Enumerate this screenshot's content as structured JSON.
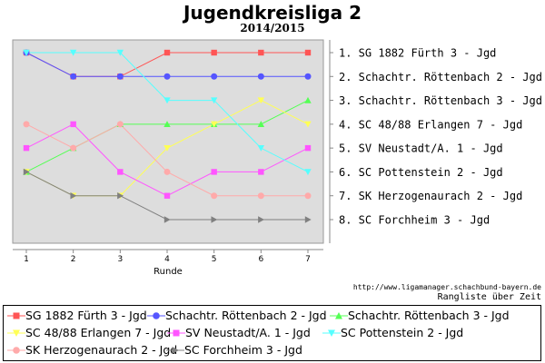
{
  "chart_data": {
    "type": "line",
    "title": "Jugendkreisliga 2",
    "subtitle": "2014/2015",
    "xlabel": "Runde",
    "ylabel": "",
    "x": [
      1,
      2,
      3,
      4,
      5,
      6,
      7
    ],
    "xlim": [
      1,
      7
    ],
    "ylim": [
      1,
      8
    ],
    "y_inverted": true,
    "grid": false,
    "rank_labels": [
      "1. SG 1882 Fürth 3 - Jgd",
      "2. Schachtr. Röttenbach 2 - Jgd",
      "3. Schachtr. Röttenbach 3 - Jgd",
      "4. SC 48/88 Erlangen 7 - Jgd",
      "5. SV Neustadt/A. 1 - Jgd",
      "6. SC Pottenstein 2 - Jgd",
      "7. SK Herzogenaurach 2 - Jgd",
      "8. SC Forchheim 3 - Jgd"
    ],
    "series": [
      {
        "name": "SG 1882 Fürth 3 - Jgd",
        "color": "#ff5555",
        "marker": "square",
        "values": [
          1,
          2,
          2,
          1,
          1,
          1,
          1
        ]
      },
      {
        "name": "Schachtr. Röttenbach 2 - Jgd",
        "color": "#5555ff",
        "marker": "circle",
        "values": [
          1,
          2,
          2,
          2,
          2,
          2,
          2
        ]
      },
      {
        "name": "Schachtr. Röttenbach 3 - Jgd",
        "color": "#55ff55",
        "marker": "triangle-up",
        "values": [
          6,
          5,
          4,
          4,
          4,
          4,
          3
        ]
      },
      {
        "name": "SC 48/88 Erlangen 7 - Jgd",
        "color": "#ffff55",
        "marker": "triangle-down",
        "values": [
          6,
          7,
          7,
          5,
          4,
          3,
          4
        ]
      },
      {
        "name": "SV Neustadt/A. 1 - Jgd",
        "color": "#ff55ff",
        "marker": "square",
        "values": [
          5,
          4,
          6,
          7,
          6,
          6,
          5
        ]
      },
      {
        "name": "SC Pottenstein 2 - Jgd",
        "color": "#55ffff",
        "marker": "triangle-down",
        "values": [
          1,
          1,
          1,
          3,
          3,
          5,
          6
        ]
      },
      {
        "name": "SK Herzogenaurach 2 - Jgd",
        "color": "#ffaaaa",
        "marker": "circle",
        "values": [
          4,
          5,
          4,
          6,
          7,
          7,
          7
        ]
      },
      {
        "name": "SC Forchheim 3 - Jgd",
        "color": "#808080",
        "marker": "triangle-right",
        "values": [
          6,
          7,
          7,
          8,
          8,
          8,
          8
        ]
      }
    ]
  },
  "source_url": "http://www.ligamanager.schachbund-bayern.de",
  "footer_label": "Rangliste über Zeit"
}
